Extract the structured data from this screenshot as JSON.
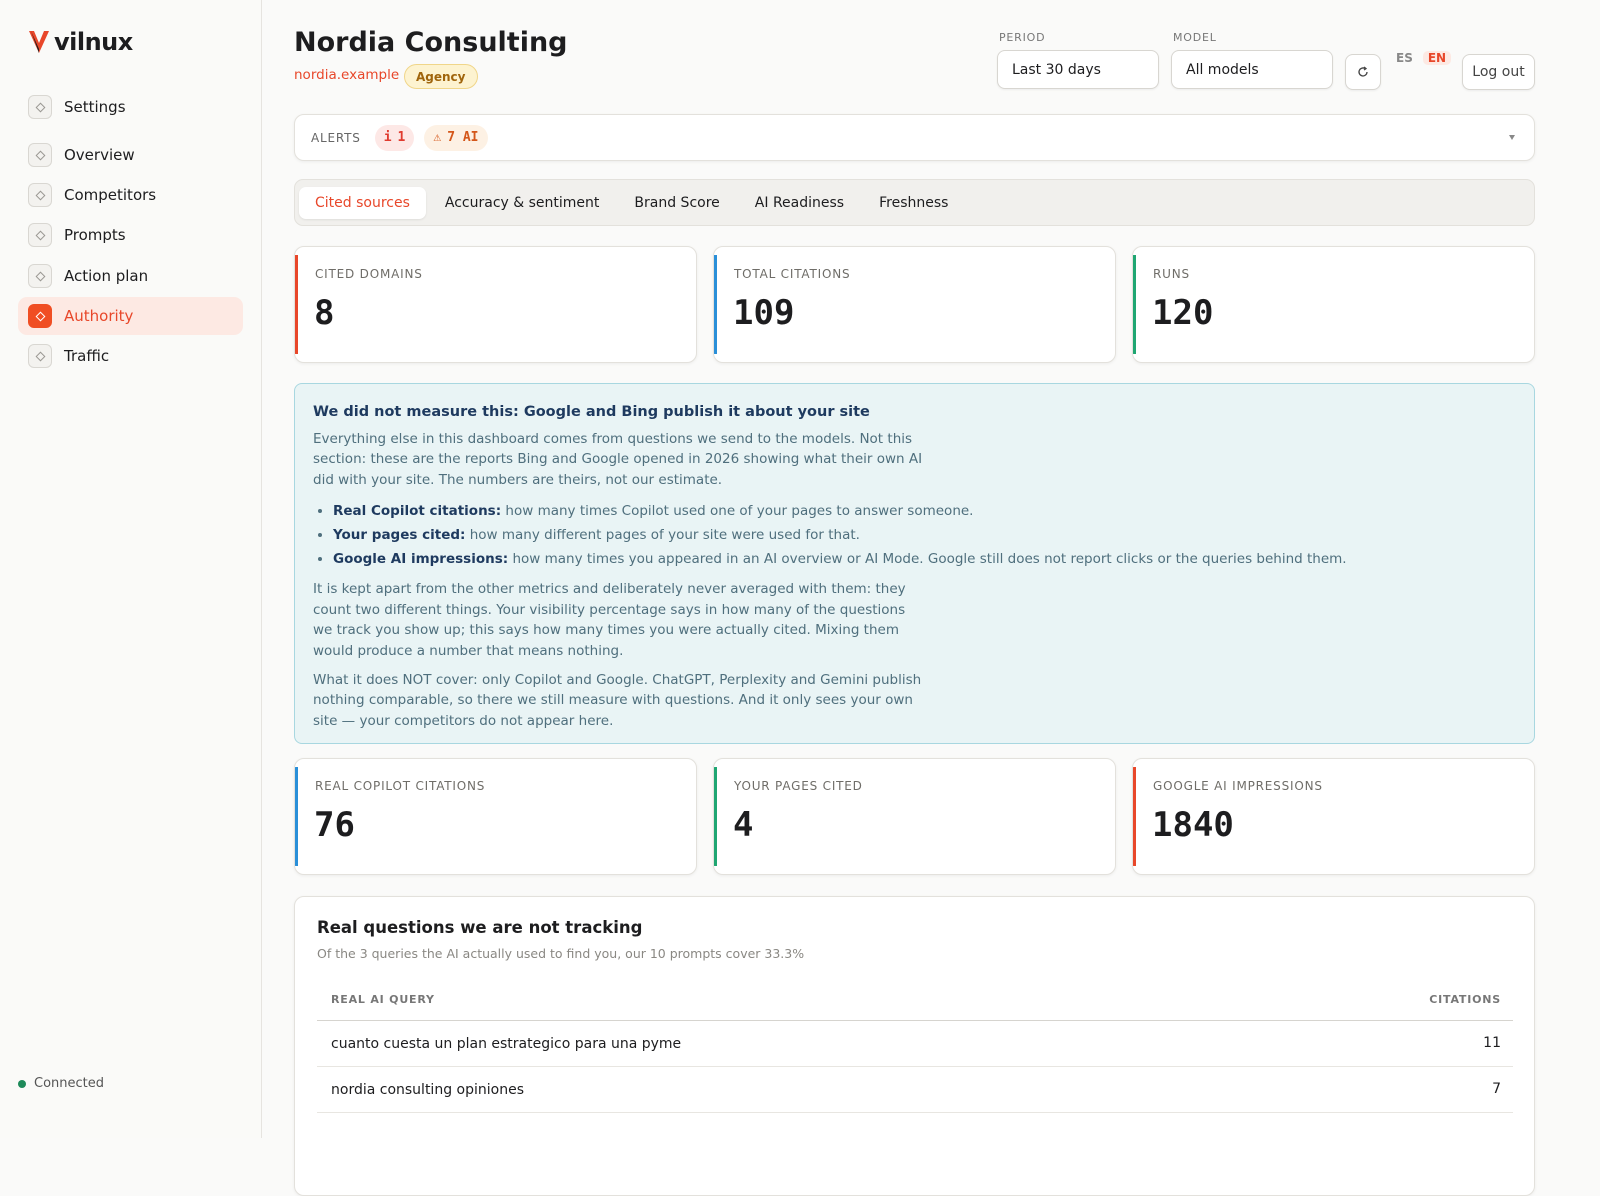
{
  "sidebar": {
    "logo": "vilnux",
    "nav": [
      {
        "label": "Settings",
        "group": "top"
      },
      {
        "label": "Overview"
      },
      {
        "label": "Competitors"
      },
      {
        "label": "Prompts"
      },
      {
        "label": "Action plan"
      },
      {
        "label": "Authority",
        "active": true
      },
      {
        "label": "Traffic"
      }
    ],
    "status": "Connected"
  },
  "header": {
    "title": "Nordia Consulting",
    "domain": "nordia.example",
    "badge": "Agency",
    "period": {
      "label": "PERIOD",
      "value": "Last 30 days"
    },
    "model": {
      "label": "MODEL",
      "value": "All models"
    },
    "languages": [
      "ES",
      "EN"
    ],
    "active_language": "EN",
    "logout": "Log out"
  },
  "alerts": {
    "label": "ALERTS",
    "items": [
      {
        "icon": "i",
        "text": "1",
        "color": "#e03b2f",
        "bg": "#fde8e6"
      },
      {
        "icon": "⚠",
        "text": "7 AI",
        "color": "#d4571a",
        "bg": "#fdf1e4"
      }
    ]
  },
  "tabs": [
    {
      "label": "Cited sources",
      "active": true
    },
    {
      "label": "Accuracy & sentiment"
    },
    {
      "label": "Brand Score"
    },
    {
      "label": "AI Readiness"
    },
    {
      "label": "Freshness"
    }
  ],
  "kpis": [
    {
      "label": "CITED DOMAINS",
      "value": 8,
      "color": "#e8472a"
    },
    {
      "label": "TOTAL CITATIONS",
      "value": 109,
      "color": "#2a8fd8"
    },
    {
      "label": "RUNS",
      "value": 120,
      "color": "#1fa672"
    }
  ],
  "info": {
    "title": "We did not measure this: Google and Bing publish it about your site",
    "intro": "Everything else in this dashboard comes from questions we send to the models. Not this section: these are the reports Bing and Google opened in 2026 showing what their own AI did with your site. The numbers are theirs, not our estimate.",
    "bullets": [
      {
        "term": "Real Copilot citations:",
        "text": "how many times Copilot used one of your pages to answer someone."
      },
      {
        "term": "Your pages cited:",
        "text": "how many different pages of your site were used for that."
      },
      {
        "term": "Google AI impressions:",
        "text": "how many times you appeared in an AI overview or AI Mode. Google still does not report clicks or the queries behind them."
      }
    ],
    "paragraphs": [
      "It is kept apart from the other metrics and deliberately never averaged with them: they count two different things. Your visibility percentage says in how many of the questions we track you show up; this says how many times you were actually cited. Mixing them would produce a number that means nothing.",
      "What it does NOT cover: only Copilot and Google. ChatGPT, Perplexity and Gemini publish nothing comparable, so there we still measure with questions. And it only sees your own site — your competitors do not appear here."
    ]
  },
  "external_kpis": [
    {
      "label": "REAL COPILOT CITATIONS",
      "value": 76,
      "color": "#2a8fd8"
    },
    {
      "label": "YOUR PAGES CITED",
      "value": 4,
      "color": "#1fa672"
    },
    {
      "label": "GOOGLE AI IMPRESSIONS",
      "value": 1840,
      "color": "#e8472a"
    }
  ],
  "table": {
    "title": "Real questions we are not tracking",
    "subtitle": "Of the 3 queries the AI actually used to find you, our 10 prompts cover 33.3%",
    "columns": [
      "REAL AI QUERY",
      "CITATIONS"
    ],
    "rows": [
      [
        "cuanto cuesta un plan estrategico para una pyme",
        11
      ],
      [
        "nordia consulting opiniones",
        7
      ]
    ]
  }
}
